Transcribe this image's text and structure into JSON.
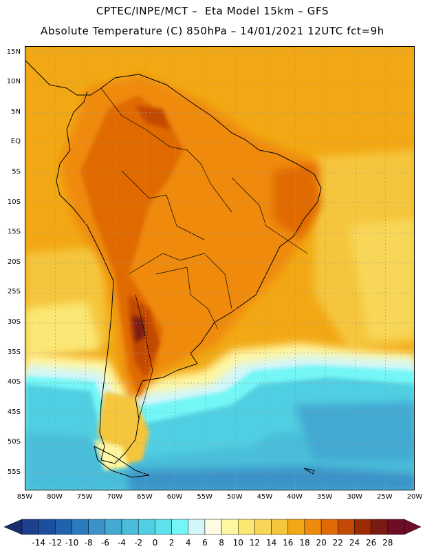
{
  "header": {
    "line1": "CPTEC/INPE/MCT –  Eta Model 15km – GFS",
    "line2": "Absolute Temperature (C) 850hPa – 14/01/2021 12UTC fct=9h"
  },
  "map": {
    "lon_range": [
      -85,
      -20
    ],
    "lat_range": [
      -58,
      16
    ],
    "lat_ticks": [
      "15N",
      "10N",
      "5N",
      "EQ",
      "5S",
      "10S",
      "15S",
      "20S",
      "25S",
      "30S",
      "35S",
      "40S",
      "45S",
      "50S",
      "55S"
    ],
    "lat_values": [
      15,
      10,
      5,
      0,
      -5,
      -10,
      -15,
      -20,
      -25,
      -30,
      -35,
      -40,
      -45,
      -50,
      -55
    ],
    "lon_ticks": [
      "85W",
      "80W",
      "75W",
      "70W",
      "65W",
      "60W",
      "55W",
      "50W",
      "45W",
      "40W",
      "35W",
      "30W",
      "25W",
      "20W"
    ],
    "lon_values": [
      -85,
      -80,
      -75,
      -70,
      -65,
      -60,
      -55,
      -50,
      -45,
      -40,
      -35,
      -30,
      -25,
      -20
    ],
    "gridlines": true
  },
  "legend": {
    "labels": [
      "-14",
      "-12",
      "-10",
      "-8",
      "-6",
      "-4",
      "-2",
      "0",
      "2",
      "4",
      "6",
      "8",
      "10",
      "12",
      "14",
      "16",
      "18",
      "20",
      "22",
      "24",
      "26",
      "28"
    ],
    "colors": [
      "#1e3f8c",
      "#1b4f9e",
      "#2062ae",
      "#2a7abe",
      "#3b93c8",
      "#43a9d2",
      "#49bdd9",
      "#51cfe2",
      "#5ee3ec",
      "#75f6f6",
      "#d2f6fa",
      "#fffbe5",
      "#fff6a0",
      "#fbe774",
      "#f8d758",
      "#f5c63c",
      "#f2a814",
      "#ef8a0c",
      "#e06a06",
      "#c24a04",
      "#9c2a04",
      "#7a1a14",
      "#6e0e26"
    ],
    "underflow_color": "#1b2d6e",
    "overflow_color": "#6e0e26"
  }
}
